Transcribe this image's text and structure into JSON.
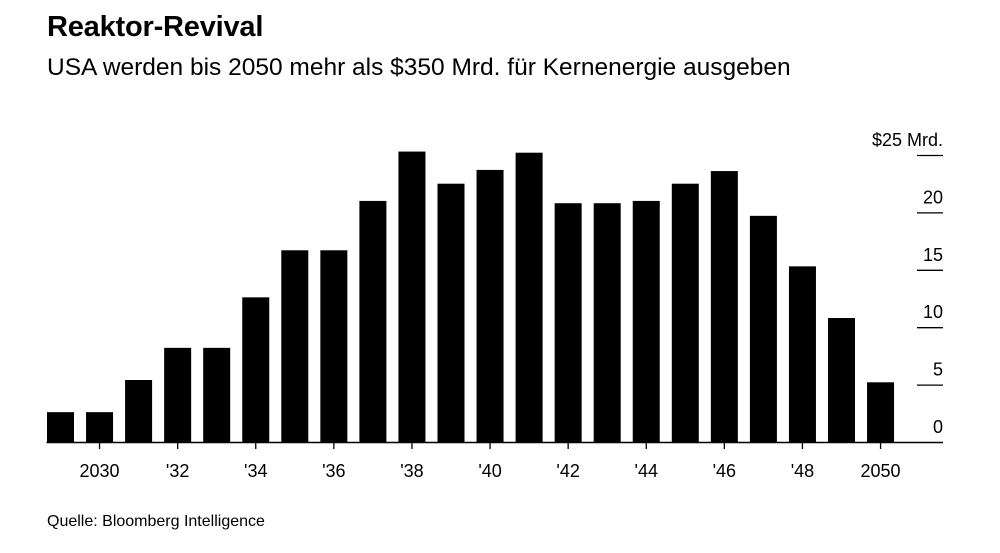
{
  "header": {
    "title": "Reaktor-Revival",
    "subtitle": "USA werden bis 2050 mehr als $350 Mrd. für Kernenergie ausgeben"
  },
  "footer": {
    "source": "Quelle: Bloomberg Intelligence"
  },
  "colors": {
    "bar": "#000000",
    "background": "#ffffff",
    "text": "#000000"
  },
  "chart_data": {
    "type": "bar",
    "title": "Reaktor-Revival",
    "subtitle": "USA werden bis 2050 mehr als $350 Mrd. für Kernenergie ausgeben",
    "xlabel": "",
    "ylabel": "",
    "unit": "Mrd. $",
    "ylim": [
      0,
      25
    ],
    "grid": false,
    "y_axis_position": "right",
    "categories": [
      2029,
      2030,
      2031,
      2032,
      2033,
      2034,
      2035,
      2036,
      2037,
      2038,
      2039,
      2040,
      2041,
      2042,
      2043,
      2044,
      2045,
      2046,
      2047,
      2048,
      2049,
      2050
    ],
    "values": [
      2.6,
      2.6,
      5.4,
      8.2,
      8.2,
      12.6,
      16.7,
      16.7,
      21.0,
      25.3,
      22.5,
      23.7,
      25.2,
      20.8,
      20.8,
      21.0,
      22.5,
      23.6,
      19.7,
      15.3,
      10.8,
      5.2
    ],
    "x_tick_labels": [
      {
        "category": 2030,
        "label": "2030"
      },
      {
        "category": 2032,
        "label": "'32"
      },
      {
        "category": 2034,
        "label": "'34"
      },
      {
        "category": 2036,
        "label": "'36"
      },
      {
        "category": 2038,
        "label": "'38"
      },
      {
        "category": 2040,
        "label": "'40"
      },
      {
        "category": 2042,
        "label": "'42"
      },
      {
        "category": 2044,
        "label": "'44"
      },
      {
        "category": 2046,
        "label": "'46"
      },
      {
        "category": 2048,
        "label": "'48"
      },
      {
        "category": 2050,
        "label": "2050"
      }
    ],
    "y_ticks": [
      {
        "value": 25,
        "label": "$25 Mrd."
      },
      {
        "value": 20,
        "label": "20"
      },
      {
        "value": 15,
        "label": "15"
      },
      {
        "value": 10,
        "label": "10"
      },
      {
        "value": 5,
        "label": "5"
      },
      {
        "value": 0,
        "label": "0"
      }
    ]
  }
}
